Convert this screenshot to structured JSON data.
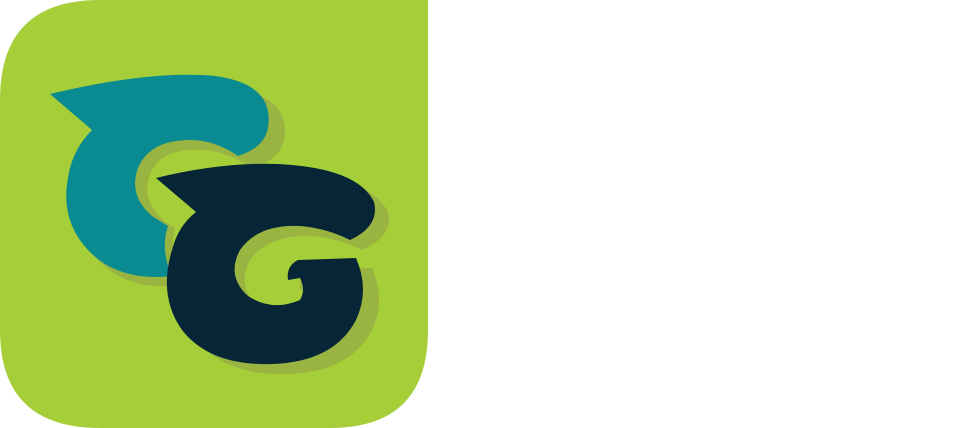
{
  "logo": {
    "name": "app-icon-logo",
    "description_icon": "double-g-logo-icon",
    "colors": {
      "background": "#a6ce39",
      "shadow": "#9ab442",
      "front_letter": "#062537",
      "back_letter": "#0a8a91",
      "page": "#ffffff"
    }
  }
}
